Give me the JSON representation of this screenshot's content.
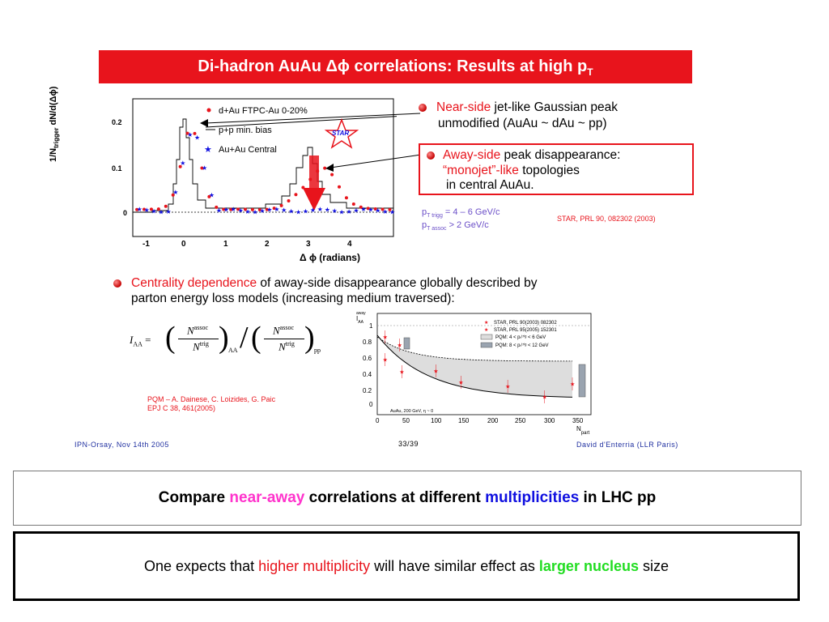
{
  "title": "Di-hadron AuAu Δϕ correlations: Results at high p",
  "title_sub": "T",
  "plot1": {
    "ylabel": "1/N",
    "ylabel_sub": "trigger",
    "ylabel_rest": " dN/d(Δϕ)",
    "xlabel": "Δ  ϕ  (radians)",
    "x_ticks": [
      "-1",
      "0",
      "1",
      "2",
      "3",
      "4"
    ],
    "y_ticks": [
      "0.2",
      "0.1",
      "0"
    ],
    "legend": [
      "d+Au FTPC-Au 0-20%",
      "p+p min. bias",
      "Au+Au Central"
    ],
    "logo": "STAR"
  },
  "near_side": {
    "highlight": "Near-side",
    "rest": " jet-like Gaussian peak",
    "line2": "unmodified (AuAu ~ dAu ~ pp)"
  },
  "away_side": {
    "highlight": "Away-side",
    "rest": " peak disappearance:",
    "line2_highlight": "“monojet”-like",
    "line2_rest": " topologies",
    "line3": "in central AuAu."
  },
  "cuts": {
    "line1_p": "p",
    "line1_sub": "T trigg",
    "line1_rest": "  = 4 – 6 GeV/c",
    "line2_p": "p",
    "line2_sub": "T assoc",
    "line2_rest": " > 2 GeV/c"
  },
  "reference": "STAR, PRL 90, 082302 (2003)",
  "centrality": {
    "highlight": "Centrality dependence",
    "rest": " of away-side disappearance globally described by",
    "line2": "parton energy loss models (increasing medium traversed):"
  },
  "pqm_ref": {
    "line1": "PQM – A. Dainese, C. Loizides, G. Paic",
    "line2": "EPJ C 38, 461(2005)"
  },
  "plot2": {
    "ylabel": "I",
    "ylabel_sub": "AA",
    "ylabel_sup": "away",
    "xlabel": "N",
    "xlabel_sub": "part",
    "x_ticks": [
      "0",
      "50",
      "100",
      "150",
      "200",
      "250",
      "300",
      "350"
    ],
    "y_ticks": [
      "1",
      "0.8",
      "0.6",
      "0.4",
      "0.2",
      "0"
    ],
    "legend": [
      "STAR, PRL 90(2003) 082302",
      "STAR, PRL 95(2005) 152301",
      "PQM: 4 < pₜᵗʳⁱᵍ < 6 GeV",
      "PQM: 8 < pₜᵗʳⁱᵍ < 12 GeV"
    ],
    "annotation": "AuAu, 200 GeV, η ~ 0"
  },
  "formula": {
    "lhs": "I",
    "lhs_sub": "AA",
    "num": "N",
    "num_sup": "assoc",
    "den": "N",
    "den_sup": "trig",
    "sub1": "AA",
    "sub2": "pp"
  },
  "footer": {
    "left": "IPN-Orsay, Nov 14th 2005",
    "page": "33/39",
    "right": "David d'Enterria (LLR Paris)"
  },
  "compare": {
    "p1": "Compare ",
    "p2": "near-away",
    "p3": " correlations at different ",
    "p4": "multiplicities",
    "p5": " in LHC pp"
  },
  "expect": {
    "p1": "One expects that ",
    "p2": "higher multiplicity",
    "p3": " will have similar effect as ",
    "p4": "larger nucleus",
    "p5": " size"
  },
  "colors": {
    "title_bg": "#e8141c",
    "highlight_red": "#e8141c",
    "purple": "#6b4fc8",
    "pink": "#ff33cc",
    "blue": "#1010e0",
    "green": "#22dd22"
  }
}
